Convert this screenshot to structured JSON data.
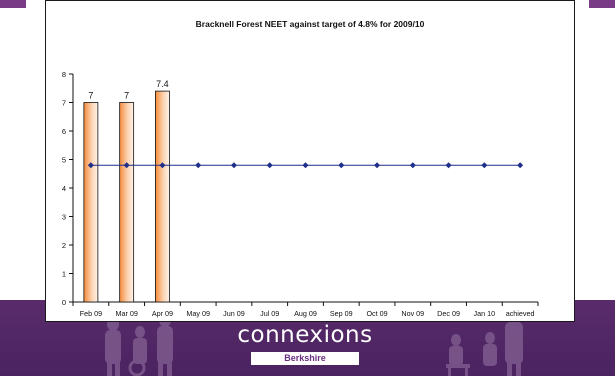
{
  "chart_data": {
    "type": "bar",
    "title": "Bracknell Forest NEET against target  of 4.8% for 2009/10",
    "categories": [
      "Feb 09",
      "Mar 09",
      "Apr 09",
      "May 09",
      "Jun 09",
      "Jul 09",
      "Aug 09",
      "Sep 09",
      "Oct 09",
      "Nov 09",
      "Dec 09",
      "Jan 10",
      "achieved"
    ],
    "series": [
      {
        "type": "bar",
        "values": [
          7,
          7,
          7.4,
          null,
          null,
          null,
          null,
          null,
          null,
          null,
          null,
          null,
          null
        ],
        "data_labels": [
          "7",
          "7",
          "7.4"
        ],
        "color": "#f58a3a"
      },
      {
        "type": "line",
        "values": [
          4.8,
          4.8,
          4.8,
          4.8,
          4.8,
          4.8,
          4.8,
          4.8,
          4.8,
          4.8,
          4.8,
          4.8,
          4.8
        ],
        "color": "#1f2f8a"
      }
    ],
    "ylim": [
      0,
      8
    ],
    "yticks": [
      "0",
      "1",
      "2",
      "3",
      "4",
      "5",
      "6",
      "7",
      "8"
    ],
    "xlabel": "",
    "ylabel": "",
    "grid": false,
    "legend": "none"
  },
  "footer": {
    "logo_text": "connexions",
    "logo_subtext": "Berkshire"
  },
  "colors": {
    "footer_band": "#4e2563",
    "figures": "#7d5a8e"
  }
}
